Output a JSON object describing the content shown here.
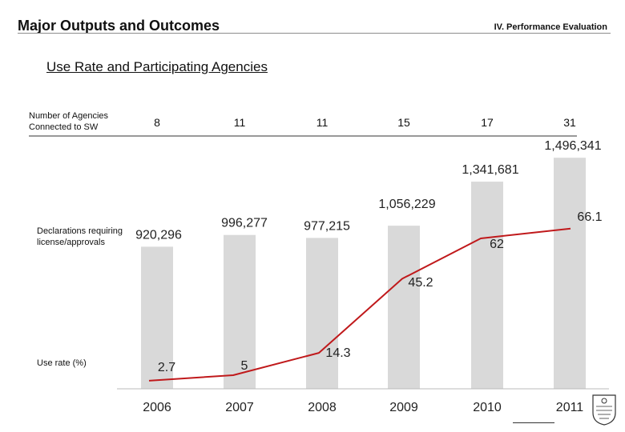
{
  "header": {
    "title": "Major Outputs and Outcomes",
    "section": "IV. Performance Evaluation"
  },
  "subtitle": "Use Rate and Participating Agencies",
  "labels": {
    "agencies_line1": "Number of Agencies",
    "agencies_line2": "Connected to SW",
    "declarations_line1": "Declarations requiring",
    "declarations_line2": "license/approvals",
    "use_rate": "Use rate (%)"
  },
  "colors": {
    "bar": "#d9d9d9",
    "line": "#c0191b",
    "axis": "#555555"
  },
  "chart_data": {
    "type": "bar",
    "categories": [
      "2006",
      "2007",
      "2008",
      "2009",
      "2010",
      "2011"
    ],
    "agencies": [
      8,
      11,
      11,
      15,
      17,
      31
    ],
    "series": [
      {
        "type": "bar",
        "values": [
          920296,
          996277,
          977215,
          1056229,
          1341681,
          1496341
        ],
        "value_labels": [
          "920,296",
          "996,277",
          "977,215",
          "1,056,229",
          "1,341,681",
          "1,496,341"
        ]
      },
      {
        "type": "line",
        "values": [
          2.7,
          5,
          14.3,
          45.2,
          62,
          66.1
        ],
        "value_labels": [
          "2.7",
          "5",
          "14.3",
          "45.2",
          "62",
          "66.1"
        ]
      }
    ]
  }
}
